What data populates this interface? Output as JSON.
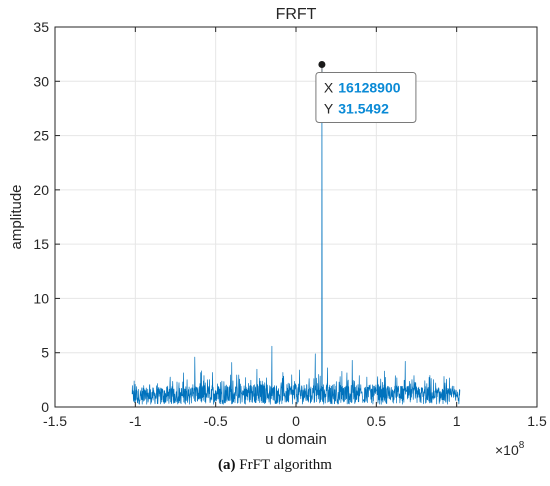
{
  "chart_data": {
    "type": "line",
    "title": "FRFT",
    "xlabel": "u domain",
    "ylabel": "amplitude",
    "x_exponent_label": "×10",
    "x_exponent_power": "8",
    "x_scale": 100000000,
    "xlim": [
      -150000000,
      150000000
    ],
    "ylim": [
      0,
      35
    ],
    "xticks": [
      -150000000,
      -100000000,
      -50000000,
      0,
      50000000,
      100000000,
      150000000
    ],
    "xtick_labels": [
      "-1.5",
      "-1",
      "-0.5",
      "0",
      "0.5",
      "1",
      "1.5"
    ],
    "yticks": [
      0,
      5,
      10,
      15,
      20,
      25,
      30,
      35
    ],
    "ytick_labels": [
      "0",
      "5",
      "10",
      "15",
      "20",
      "25",
      "30",
      "35"
    ],
    "grid": true,
    "line_color": "#0072BD",
    "noise_range": [
      -102000000,
      102000000
    ],
    "peak": {
      "x": 16128900,
      "y": 31.5492
    },
    "visible_spikes": [
      {
        "x": -15000000,
        "y": 5.6
      },
      {
        "x": 12000000,
        "y": 4.9
      },
      {
        "x": -63000000,
        "y": 4.6
      },
      {
        "x": 68000000,
        "y": 4.2
      },
      {
        "x": 35000000,
        "y": 4.3
      },
      {
        "x": -40000000,
        "y": 4.1
      }
    ],
    "datatip": {
      "x_label": "X",
      "x_value": "16128900",
      "y_label": "Y",
      "y_value": "31.5492"
    }
  },
  "caption": {
    "label": "(a)",
    "text": "FrFT algorithm"
  }
}
